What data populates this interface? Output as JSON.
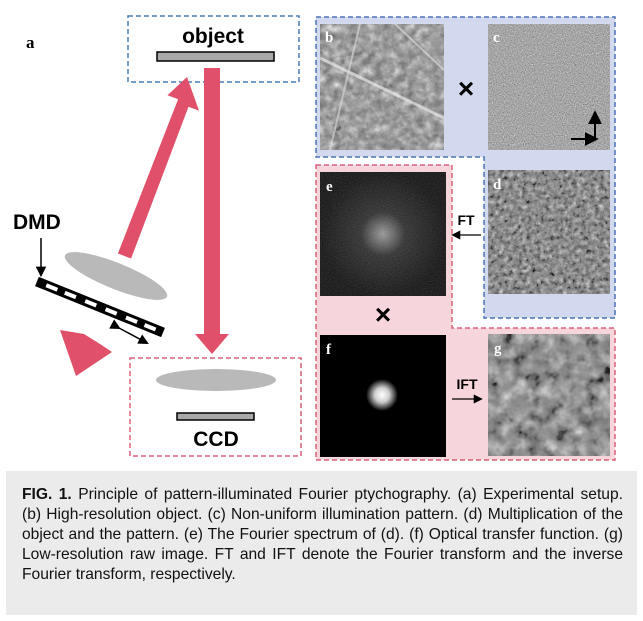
{
  "figure": {
    "panel_labels": {
      "a": "a",
      "b": "b",
      "c": "c",
      "d": "d",
      "e": "e",
      "f": "f",
      "g": "g"
    },
    "labels": {
      "object": "object",
      "dmd": "DMD",
      "ccd": "CCD",
      "ft": "FT",
      "ift": "IFT",
      "multiply_1": "×",
      "multiply_2": "×"
    },
    "colors": {
      "beam": "#e0506a",
      "blue_region": "#d2d9ef",
      "blue_border": "#4a73b8",
      "pink_region": "#f6d6dc",
      "pink_border": "#d9607a",
      "lens": "#b9b9b9"
    }
  },
  "caption": {
    "label": "FIG. 1.",
    "text": "Principle of pattern-illuminated Fourier ptychography. (a) Experimental setup. (b) High-resolution object. (c) Non-uniform illumination pattern. (d) Multiplication of the object and the pattern. (e) The Fourier spectrum of (d). (f) Optical transfer function. (g) Low-resolution raw image. FT and IFT denote the Fourier transform and the inverse Fourier transform, respectively."
  }
}
